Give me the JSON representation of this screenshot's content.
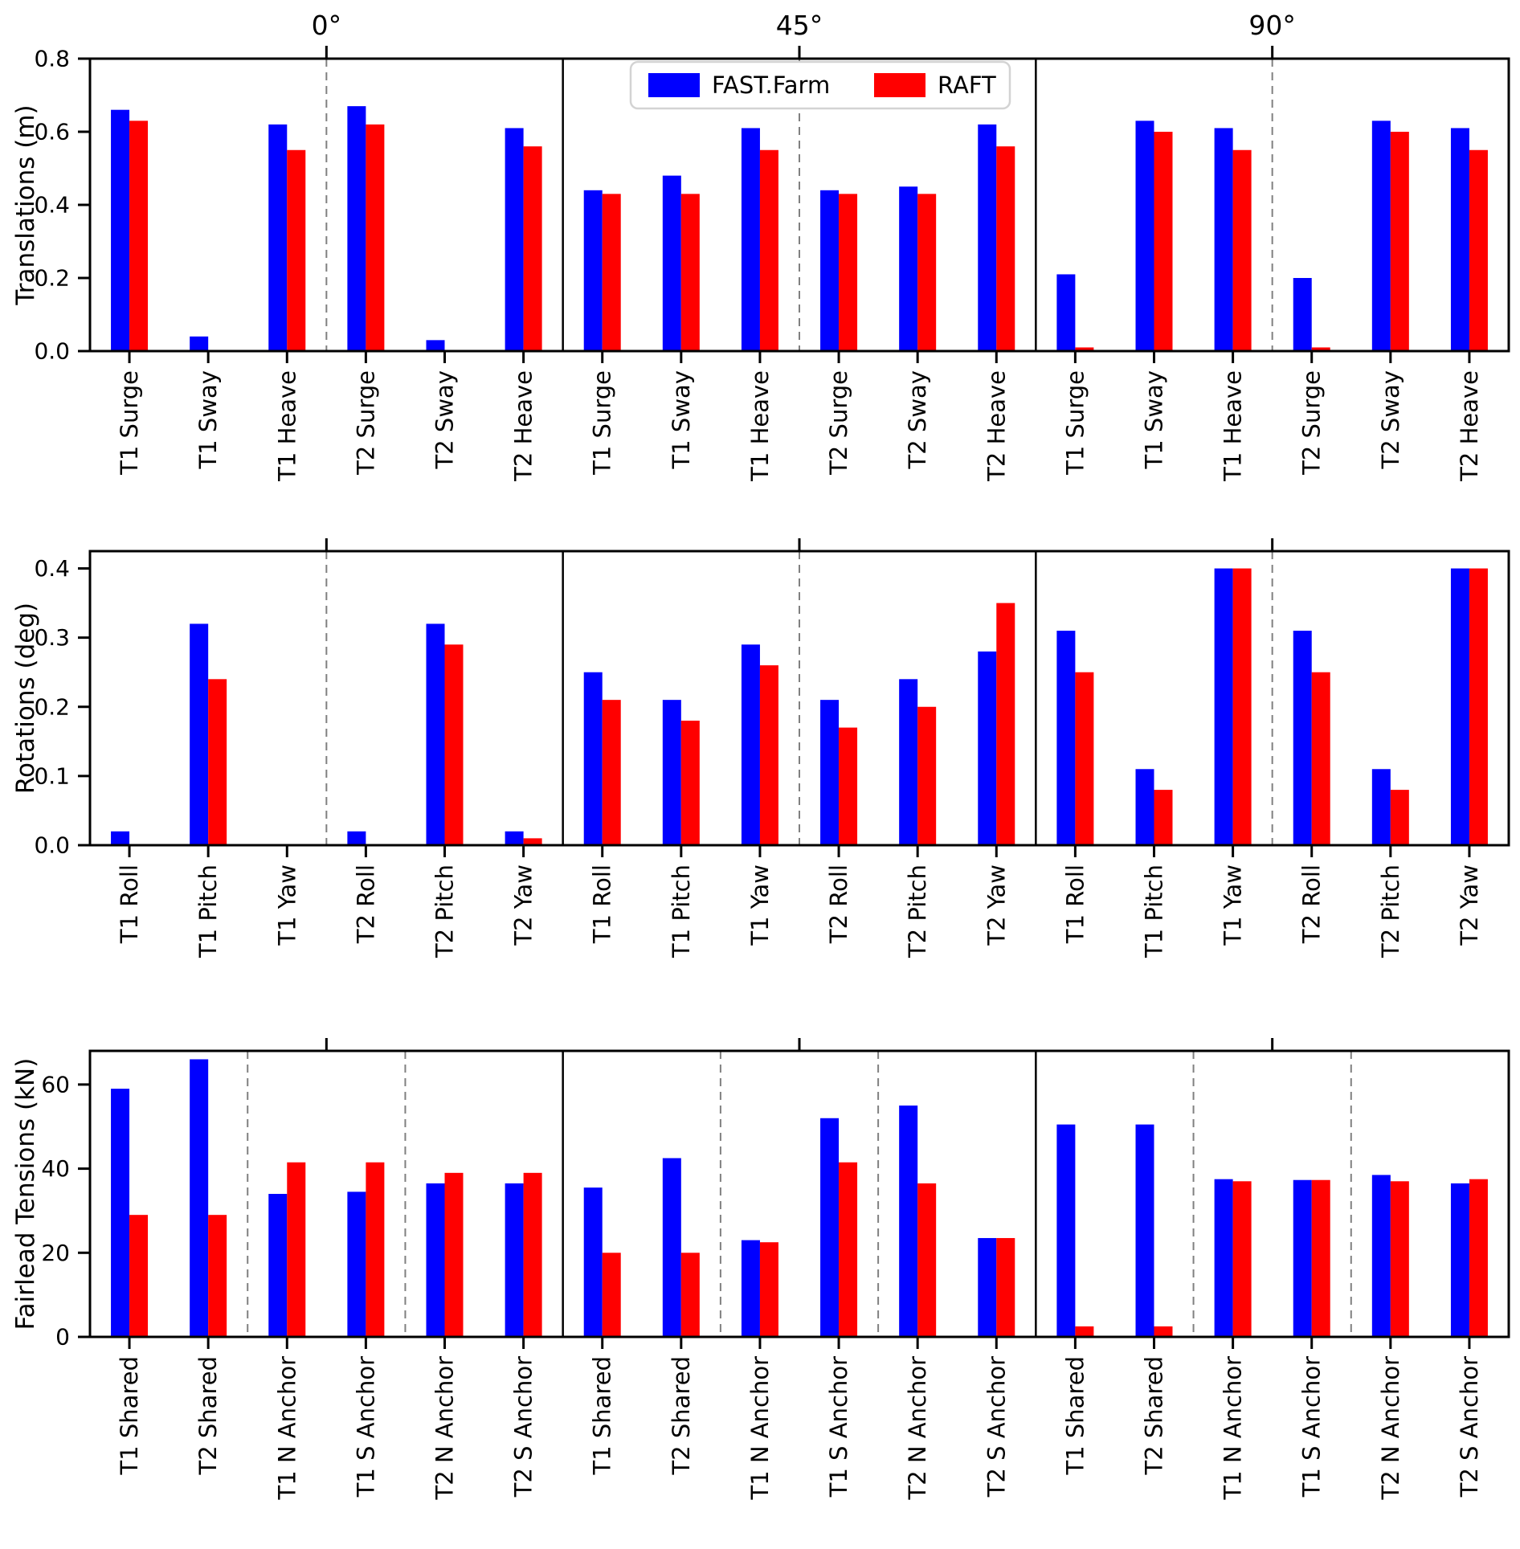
{
  "panels": [
    "0°",
    "45°",
    "90°"
  ],
  "colors": {
    "fast_farm_blue": "#0000FF",
    "raft_red": "#FF0000",
    "axis_black": "#000000",
    "dashed_divider_gray": "#808080",
    "legend_border_gray": "#D3D3D3"
  },
  "legend": {
    "position": "upper center",
    "items": [
      {
        "label": "FAST.Farm",
        "color": "#0000FF"
      },
      {
        "label": "RAFT",
        "color": "#FF0000"
      }
    ]
  },
  "chart_data": [
    {
      "type": "bar",
      "title": "",
      "ylabel": "Translations (m)",
      "ylim": [
        0,
        0.8
      ],
      "yticks": [
        0,
        0.2,
        0.4,
        0.6,
        0.8
      ],
      "ytick_labels": [
        "0.0",
        "0.2",
        "0.4",
        "0.6",
        "0.8"
      ],
      "grid": false,
      "show_panel_titles": true,
      "dashed_divider_boundaries": [
        3
      ],
      "categories": [
        "T1 Surge",
        "T1 Sway",
        "T1 Heave",
        "T2 Surge",
        "T2 Sway",
        "T2 Heave"
      ],
      "series": [
        {
          "name": "FAST.Farm",
          "color": "#0000FF",
          "values_by_panel": [
            [
              0.66,
              0.04,
              0.62,
              0.67,
              0.03,
              0.61
            ],
            [
              0.44,
              0.48,
              0.61,
              0.44,
              0.45,
              0.62
            ],
            [
              0.21,
              0.63,
              0.61,
              0.2,
              0.63,
              0.61
            ]
          ]
        },
        {
          "name": "RAFT",
          "color": "#FF0000",
          "values_by_panel": [
            [
              0.63,
              0.0,
              0.55,
              0.62,
              0.0,
              0.56
            ],
            [
              0.43,
              0.43,
              0.55,
              0.43,
              0.43,
              0.56
            ],
            [
              0.01,
              0.6,
              0.55,
              0.01,
              0.6,
              0.55
            ]
          ]
        }
      ]
    },
    {
      "type": "bar",
      "title": "",
      "ylabel": "Rotations (deg)",
      "ylim": [
        0,
        0.425
      ],
      "yticks": [
        0,
        0.1,
        0.2,
        0.3,
        0.4
      ],
      "ytick_labels": [
        "0.0",
        "0.1",
        "0.2",
        "0.3",
        "0.4"
      ],
      "grid": false,
      "show_panel_titles": false,
      "dashed_divider_boundaries": [
        3
      ],
      "categories": [
        "T1 Roll",
        "T1 Pitch",
        "T1 Yaw",
        "T2 Roll",
        "T2 Pitch",
        "T2 Yaw"
      ],
      "series": [
        {
          "name": "FAST.Farm",
          "color": "#0000FF",
          "values_by_panel": [
            [
              0.02,
              0.32,
              0.0,
              0.02,
              0.32,
              0.02
            ],
            [
              0.25,
              0.21,
              0.29,
              0.21,
              0.24,
              0.28
            ],
            [
              0.31,
              0.11,
              0.4,
              0.31,
              0.11,
              0.4
            ]
          ]
        },
        {
          "name": "RAFT",
          "color": "#FF0000",
          "values_by_panel": [
            [
              0.0,
              0.24,
              0.0,
              0.0,
              0.29,
              0.01
            ],
            [
              0.21,
              0.18,
              0.26,
              0.17,
              0.2,
              0.35
            ],
            [
              0.25,
              0.08,
              0.4,
              0.25,
              0.08,
              0.4
            ]
          ]
        }
      ]
    },
    {
      "type": "bar",
      "title": "",
      "ylabel": "Fairlead Tensions (kN)",
      "ylim": [
        0,
        68
      ],
      "yticks": [
        0,
        20,
        40,
        60
      ],
      "ytick_labels": [
        "0",
        "20",
        "40",
        "60"
      ],
      "grid": false,
      "show_panel_titles": false,
      "dashed_divider_boundaries": [
        2,
        4
      ],
      "categories": [
        "T1 Shared",
        "T2 Shared",
        "T1 N Anchor",
        "T1 S Anchor",
        "T2 N Anchor",
        "T2 S Anchor"
      ],
      "series": [
        {
          "name": "FAST.Farm",
          "color": "#0000FF",
          "values_by_panel": [
            [
              59,
              66,
              34,
              34.5,
              36.5,
              36.5
            ],
            [
              35.5,
              42.5,
              23,
              52,
              55,
              23.5
            ],
            [
              50.5,
              50.5,
              37.5,
              37.3,
              38.5,
              36.5
            ]
          ]
        },
        {
          "name": "RAFT",
          "color": "#FF0000",
          "values_by_panel": [
            [
              29,
              29,
              41.5,
              41.5,
              39,
              39
            ],
            [
              20,
              20,
              22.5,
              41.5,
              36.5,
              23.5
            ],
            [
              2.5,
              2.5,
              37,
              37.3,
              37,
              37.5
            ]
          ]
        }
      ]
    }
  ]
}
